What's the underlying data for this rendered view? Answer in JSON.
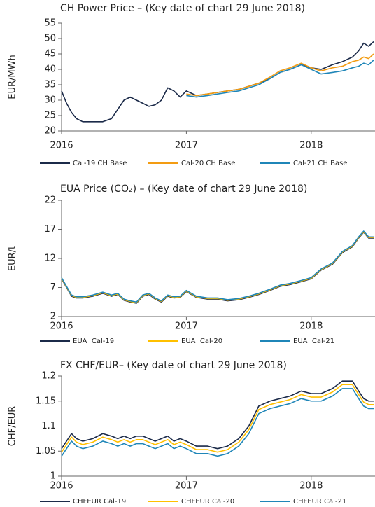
{
  "chart_data": [
    {
      "type": "line",
      "title": "CH Power Price – (Key date of chart 29 June 2018)",
      "ylabel": "EUR/MWh",
      "x": [
        2016,
        2016.04,
        2016.08,
        2016.12,
        2016.17,
        2016.25,
        2016.33,
        2016.4,
        2016.45,
        2016.5,
        2016.55,
        2016.6,
        2016.65,
        2016.7,
        2016.75,
        2016.8,
        2016.85,
        2016.9,
        2016.95,
        2017,
        2017.08,
        2017.17,
        2017.25,
        2017.33,
        2017.42,
        2017.5,
        2017.58,
        2017.67,
        2017.75,
        2017.83,
        2017.92,
        2018,
        2018.08,
        2018.17,
        2018.25,
        2018.33,
        2018.38,
        2018.42,
        2018.46,
        2018.5
      ],
      "xlim": [
        2016,
        2018.5
      ],
      "xticks": [
        2016,
        2017,
        2018
      ],
      "ylim": [
        20,
        55
      ],
      "yticks": [
        20,
        25,
        30,
        35,
        40,
        45,
        50,
        55
      ],
      "series": [
        {
          "name": "Cal-19 CH Base",
          "color": "#1b2a49",
          "values": [
            33,
            29,
            26,
            24,
            23,
            23,
            23,
            24,
            27,
            30,
            31,
            30,
            29,
            28,
            28.5,
            30,
            34,
            33,
            31,
            33,
            31.5,
            32,
            32.5,
            33,
            33.5,
            34.5,
            35.5,
            37,
            39,
            40,
            41.5,
            40.5,
            40,
            41.5,
            42.5,
            44,
            46,
            48.5,
            47.5,
            49
          ]
        },
        {
          "name": "Cal-20 CH Base",
          "color": "#f39c12",
          "values": [
            null,
            null,
            null,
            null,
            null,
            null,
            null,
            null,
            null,
            null,
            null,
            null,
            null,
            null,
            null,
            null,
            null,
            null,
            null,
            32,
            31.5,
            32,
            32.5,
            33,
            33.5,
            34.5,
            35.5,
            37.5,
            39.5,
            40.5,
            42,
            40.5,
            39.5,
            40.5,
            41,
            42.5,
            43,
            44,
            43.5,
            45
          ]
        },
        {
          "name": "Cal-21 CH Base",
          "color": "#1f86b8",
          "values": [
            null,
            null,
            null,
            null,
            null,
            null,
            null,
            null,
            null,
            null,
            null,
            null,
            null,
            null,
            null,
            null,
            null,
            null,
            null,
            31.5,
            31,
            31.5,
            32,
            32.5,
            33,
            34,
            35,
            37,
            39,
            40,
            41.5,
            40,
            38.5,
            39,
            39.5,
            40.5,
            41,
            42,
            41.5,
            43
          ]
        }
      ]
    },
    {
      "type": "line",
      "title": "EUA Price (CO₂) – (Key date of chart 29 June 2018)",
      "ylabel": "EUR/t",
      "x": [
        2016,
        2016.04,
        2016.08,
        2016.12,
        2016.17,
        2016.25,
        2016.33,
        2016.4,
        2016.45,
        2016.5,
        2016.55,
        2016.6,
        2016.65,
        2016.7,
        2016.75,
        2016.8,
        2016.85,
        2016.9,
        2016.95,
        2017,
        2017.08,
        2017.17,
        2017.25,
        2017.33,
        2017.42,
        2017.5,
        2017.58,
        2017.67,
        2017.75,
        2017.83,
        2017.92,
        2018,
        2018.08,
        2018.17,
        2018.25,
        2018.33,
        2018.38,
        2018.42,
        2018.46,
        2018.5
      ],
      "xlim": [
        2016,
        2018.5
      ],
      "xticks": [
        2016,
        2017,
        2018
      ],
      "ylim": [
        2,
        22
      ],
      "yticks": [
        2,
        7,
        12,
        17,
        22
      ],
      "series": [
        {
          "name": "EUA  Cal-19",
          "color": "#1b2a49",
          "values": [
            8.5,
            7,
            5.5,
            5.2,
            5.2,
            5.5,
            6,
            5.5,
            5.8,
            4.8,
            4.5,
            4.3,
            5.5,
            5.8,
            5,
            4.5,
            5.5,
            5.2,
            5.3,
            6.3,
            5.3,
            5,
            5,
            4.7,
            4.9,
            5.3,
            5.8,
            6.5,
            7.2,
            7.5,
            8,
            8.5,
            10,
            11,
            13,
            14,
            15.5,
            16.5,
            15.5,
            15.5
          ]
        },
        {
          "name": "EUA  Cal-20",
          "color": "#ffc000",
          "values": [
            8.6,
            7.1,
            5.6,
            5.3,
            5.3,
            5.6,
            6.1,
            5.6,
            5.9,
            4.9,
            4.6,
            4.4,
            5.6,
            5.9,
            5.1,
            4.6,
            5.6,
            5.3,
            5.4,
            6.4,
            5.4,
            5.1,
            5.1,
            4.8,
            5,
            5.4,
            5.9,
            6.6,
            7.3,
            7.6,
            8.1,
            8.6,
            10.1,
            11.1,
            13.1,
            14.1,
            15.6,
            16.6,
            15.6,
            15.6
          ]
        },
        {
          "name": "EUA  Cal-21",
          "color": "#1f86b8",
          "values": [
            8.7,
            7.2,
            5.7,
            5.4,
            5.4,
            5.7,
            6.2,
            5.7,
            6,
            5,
            4.7,
            4.5,
            5.7,
            6,
            5.2,
            4.7,
            5.7,
            5.4,
            5.5,
            6.5,
            5.5,
            5.2,
            5.2,
            4.9,
            5.1,
            5.5,
            6,
            6.7,
            7.4,
            7.7,
            8.2,
            8.7,
            10.2,
            11.2,
            13.2,
            14.2,
            15.7,
            16.7,
            15.7,
            15.7
          ]
        }
      ]
    },
    {
      "type": "line",
      "title": "FX CHF/EUR– (Key date of chart 29 June 2018)",
      "ylabel": "CHF/EUR",
      "x": [
        2016,
        2016.04,
        2016.08,
        2016.12,
        2016.17,
        2016.25,
        2016.33,
        2016.4,
        2016.45,
        2016.5,
        2016.55,
        2016.6,
        2016.65,
        2016.7,
        2016.75,
        2016.8,
        2016.85,
        2016.9,
        2016.95,
        2017,
        2017.08,
        2017.17,
        2017.25,
        2017.33,
        2017.42,
        2017.5,
        2017.58,
        2017.67,
        2017.75,
        2017.83,
        2017.92,
        2018,
        2018.08,
        2018.17,
        2018.25,
        2018.33,
        2018.38,
        2018.42,
        2018.46,
        2018.5
      ],
      "xlim": [
        2016,
        2018.5
      ],
      "xticks": [
        2016,
        2017,
        2018
      ],
      "ylim": [
        1,
        1.2
      ],
      "yticks": [
        1,
        1.05,
        1.1,
        1.15,
        1.2
      ],
      "series": [
        {
          "name": "CHFEUR Cal-19",
          "color": "#1b2a49",
          "values": [
            1.055,
            1.07,
            1.085,
            1.075,
            1.07,
            1.075,
            1.085,
            1.08,
            1.075,
            1.08,
            1.075,
            1.08,
            1.08,
            1.075,
            1.07,
            1.075,
            1.08,
            1.07,
            1.075,
            1.07,
            1.06,
            1.06,
            1.055,
            1.06,
            1.075,
            1.1,
            1.14,
            1.15,
            1.155,
            1.16,
            1.17,
            1.165,
            1.165,
            1.175,
            1.19,
            1.19,
            1.17,
            1.155,
            1.15,
            1.15
          ]
        },
        {
          "name": "CHFEUR Cal-20",
          "color": "#ffc000",
          "values": [
            1.048,
            1.063,
            1.078,
            1.068,
            1.063,
            1.068,
            1.078,
            1.073,
            1.068,
            1.073,
            1.068,
            1.073,
            1.073,
            1.068,
            1.063,
            1.068,
            1.073,
            1.063,
            1.068,
            1.063,
            1.053,
            1.053,
            1.048,
            1.053,
            1.068,
            1.093,
            1.133,
            1.143,
            1.148,
            1.153,
            1.163,
            1.158,
            1.158,
            1.168,
            1.183,
            1.183,
            1.163,
            1.148,
            1.143,
            1.143
          ]
        },
        {
          "name": "CHFEUR Cal-21",
          "color": "#1f86b8",
          "values": [
            1.04,
            1.055,
            1.07,
            1.06,
            1.055,
            1.06,
            1.07,
            1.065,
            1.06,
            1.065,
            1.06,
            1.065,
            1.065,
            1.06,
            1.055,
            1.06,
            1.065,
            1.055,
            1.06,
            1.055,
            1.045,
            1.045,
            1.04,
            1.045,
            1.06,
            1.085,
            1.125,
            1.135,
            1.14,
            1.145,
            1.155,
            1.15,
            1.15,
            1.16,
            1.175,
            1.175,
            1.155,
            1.14,
            1.135,
            1.135
          ]
        }
      ]
    }
  ]
}
